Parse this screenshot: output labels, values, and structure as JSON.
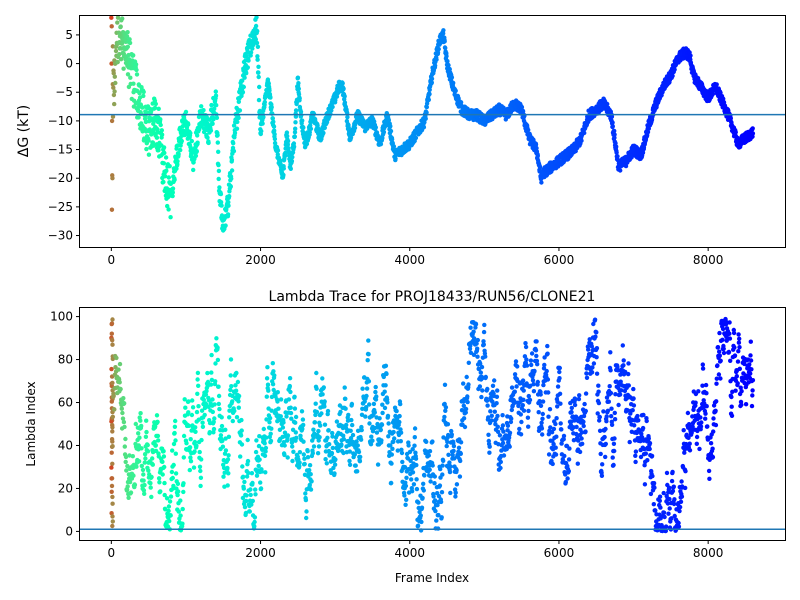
{
  "chart_data": [
    {
      "type": "scatter",
      "title": "",
      "xlabel": "",
      "ylabel": "ΔG (kT)",
      "xlim": [
        -420,
        9030
      ],
      "ylim": [
        -32,
        8.3
      ],
      "xticks": [
        0,
        2000,
        4000,
        6000,
        8000
      ],
      "yticks": [
        5,
        0,
        -5,
        -10,
        -15,
        -20,
        -25,
        -30
      ],
      "grid": false,
      "colormap": "rainbow",
      "reference_line": {
        "y": -8.9,
        "color": "#1f77b4"
      },
      "n_frames": 8600,
      "series_keypoints": {
        "x": [
          0,
          100,
          200,
          300,
          400,
          500,
          600,
          700,
          800,
          900,
          1000,
          1100,
          1200,
          1300,
          1400,
          1450,
          1500,
          1550,
          1600,
          1650,
          1700,
          1800,
          1850,
          1900,
          1950,
          2000,
          2100,
          2200,
          2300,
          2350,
          2400,
          2450,
          2500,
          2550,
          2600,
          2650,
          2700,
          2800,
          2900,
          3000,
          3050,
          3100,
          3200,
          3300,
          3400,
          3500,
          3600,
          3700,
          3800,
          3900,
          4000,
          4100,
          4200,
          4300,
          4400,
          4450,
          4500,
          4600,
          4700,
          4800,
          4900,
          5000,
          5200,
          5300,
          5400,
          5500,
          5600,
          5700,
          5760,
          5800,
          6000,
          6200,
          6300,
          6400,
          6500,
          6600,
          6700,
          6800,
          6900,
          7000,
          7100,
          7200,
          7300,
          7400,
          7500,
          7600,
          7700,
          7760,
          7800,
          7900,
          8000,
          8100,
          8200,
          8300,
          8400,
          8500,
          8600
        ],
        "y": [
          -8,
          6,
          2,
          -3,
          -8,
          -12,
          -9,
          -18,
          -23,
          -14,
          -10,
          -17,
          -9,
          -12,
          -6,
          -22,
          -29,
          -26,
          -20,
          -12,
          -8,
          0,
          2,
          5,
          6,
          -12,
          -3,
          -14,
          -20,
          -12,
          -18,
          -14,
          -3,
          -10,
          -14,
          -12,
          -9,
          -13,
          -9,
          -6,
          -4,
          -4,
          -13,
          -9,
          -11,
          -10,
          -14,
          -9,
          -16,
          -15,
          -14,
          -12,
          -10,
          -2,
          4,
          5,
          0,
          -5,
          -8,
          -9,
          -9,
          -10,
          -8,
          -9,
          -7,
          -8,
          -13,
          -15,
          -20,
          -19,
          -17,
          -15,
          -13,
          -9,
          -8,
          -7,
          -9,
          -18,
          -17,
          -15,
          -16,
          -11,
          -7,
          -4,
          -2,
          1,
          2,
          1,
          -2,
          -4,
          -6,
          -4,
          -7,
          -10,
          -14,
          -13,
          -12
        ]
      }
    },
    {
      "type": "scatter",
      "title": "Lambda Trace for PROJ18433/RUN56/CLONE21",
      "xlabel": "Frame Index",
      "ylabel": "Lambda Index",
      "xlim": [
        -420,
        9030
      ],
      "ylim": [
        -4,
        104
      ],
      "xticks": [
        0,
        2000,
        4000,
        6000,
        8000
      ],
      "yticks": [
        0,
        20,
        40,
        60,
        80,
        100
      ],
      "grid": false,
      "colormap": "rainbow",
      "reference_line": {
        "y": 1,
        "color": "#1f77b4"
      },
      "n_frames": 8600,
      "lambda_range": [
        0,
        99
      ]
    }
  ]
}
